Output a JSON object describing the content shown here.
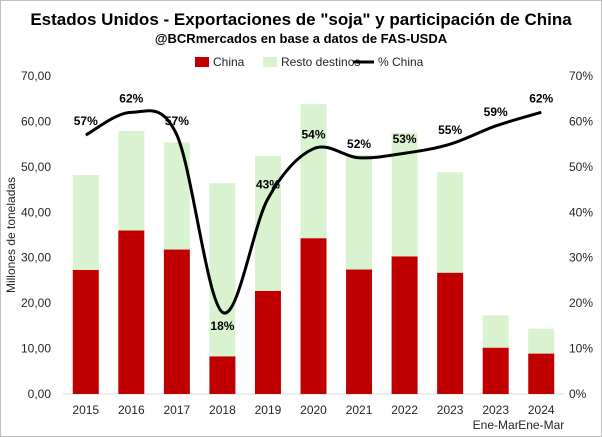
{
  "chart_data": {
    "type": "bar",
    "title": "Estados Unidos - Exportaciones de \"soja\" y participación de China",
    "subtitle": "@BCRmercados en base a datos de FAS-USDA",
    "ylabel": "Millones de toneladas",
    "ylim": [
      0,
      70
    ],
    "y_ticks": [
      "0,00",
      "10,00",
      "20,00",
      "30,00",
      "40,00",
      "50,00",
      "60,00",
      "70,00"
    ],
    "y2lim": [
      0,
      70
    ],
    "y2_ticks": [
      "0%",
      "10%",
      "20%",
      "30%",
      "40%",
      "50%",
      "60%",
      "70%"
    ],
    "categories": [
      {
        "year": "2015",
        "sub": ""
      },
      {
        "year": "2016",
        "sub": ""
      },
      {
        "year": "2017",
        "sub": ""
      },
      {
        "year": "2018",
        "sub": ""
      },
      {
        "year": "2019",
        "sub": ""
      },
      {
        "year": "2020",
        "sub": ""
      },
      {
        "year": "2021",
        "sub": ""
      },
      {
        "year": "2022",
        "sub": ""
      },
      {
        "year": "2023",
        "sub": ""
      },
      {
        "year": "2023",
        "sub": "Ene-Mar"
      },
      {
        "year": "2024",
        "sub": "Ene-Mar"
      }
    ],
    "series": [
      {
        "name": "China",
        "kind": "bar",
        "color": "#c00000",
        "values": [
          27.3,
          36.0,
          31.8,
          8.3,
          22.7,
          34.3,
          27.4,
          30.3,
          26.7,
          10.2,
          8.9
        ]
      },
      {
        "name": "Resto destinos",
        "kind": "bar",
        "color": "#d9f2d0",
        "values": [
          20.9,
          21.9,
          23.6,
          38.1,
          29.7,
          29.5,
          25.2,
          27.2,
          22.1,
          7.1,
          5.5
        ]
      },
      {
        "name": "% China",
        "kind": "line",
        "color": "#000000",
        "values": [
          57,
          62,
          57,
          18,
          43,
          54,
          52,
          53,
          55,
          59,
          62
        ],
        "labels": [
          "57%",
          "62%",
          "57%",
          "18%",
          "43%",
          "54%",
          "52%",
          "53%",
          "55%",
          "59%",
          "62%"
        ]
      }
    ],
    "legend_position": "top",
    "grid": false
  }
}
